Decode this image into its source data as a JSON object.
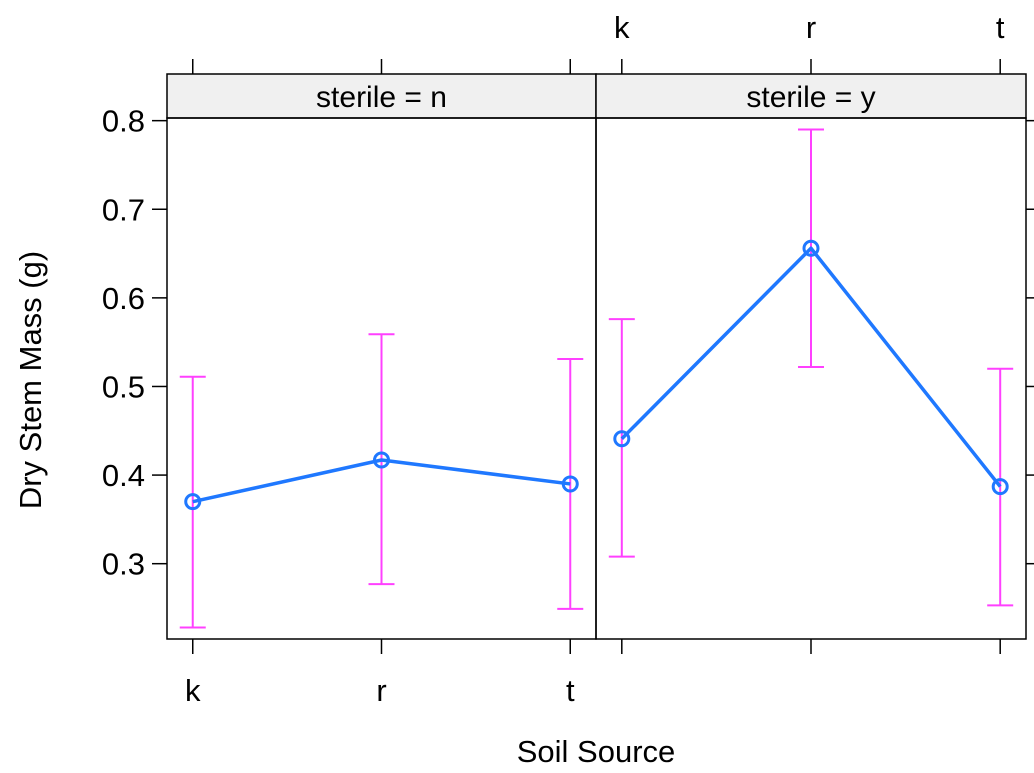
{
  "chart_data": {
    "type": "line",
    "layout": "trellis-panels-2x1",
    "xlabel": "Soil Source",
    "ylabel": "Dry Stem Mass (g)",
    "categories": [
      "k",
      "r",
      "t"
    ],
    "ylim": [
      0.215,
      0.803
    ],
    "yticks": [
      0.3,
      0.4,
      0.5,
      0.6,
      0.7,
      0.8
    ],
    "ytick_labels": [
      "0.3",
      "0.4",
      "0.5",
      "0.6",
      "0.7",
      "0.8"
    ],
    "panels": [
      {
        "strip": "sterile = n",
        "values": [
          0.37,
          0.417,
          0.39
        ],
        "lower": [
          0.228,
          0.277,
          0.249
        ],
        "upper": [
          0.511,
          0.559,
          0.531
        ]
      },
      {
        "strip": "sterile = y",
        "values": [
          0.441,
          0.656,
          0.387
        ],
        "lower": [
          0.308,
          0.522,
          0.253
        ],
        "upper": [
          0.576,
          0.79,
          0.52
        ]
      }
    ],
    "line_color": "#1f78ff",
    "errorbar_color": "#ff40ff",
    "strip_color": "#f0f0f0",
    "grid": false,
    "legend": "none"
  }
}
